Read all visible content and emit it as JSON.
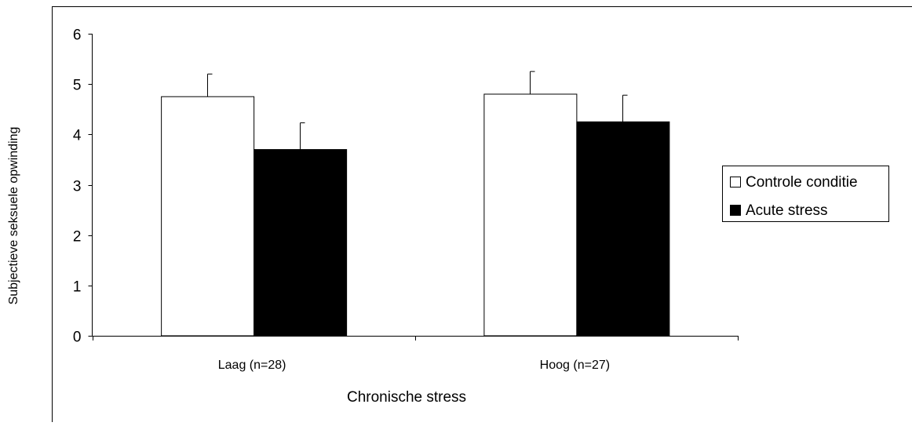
{
  "chart_data": {
    "type": "bar",
    "title": "",
    "xlabel": "Chronische stress",
    "ylabel": "Subjectieve seksuele opwinding",
    "categories": [
      "Laag (n=28)",
      "Hoog (n=27)"
    ],
    "ylim": [
      0,
      6
    ],
    "yticks": [
      0,
      1,
      2,
      3,
      4,
      5,
      6
    ],
    "grid": false,
    "legend_position": "right",
    "series": [
      {
        "name": "Controle conditie",
        "values": [
          4.75,
          4.8
        ],
        "errors": [
          0.45,
          0.45
        ],
        "color": "#ffffff"
      },
      {
        "name": "Acute stress",
        "values": [
          3.7,
          4.25
        ],
        "errors": [
          0.53,
          0.53
        ],
        "color": "#000000"
      }
    ]
  }
}
